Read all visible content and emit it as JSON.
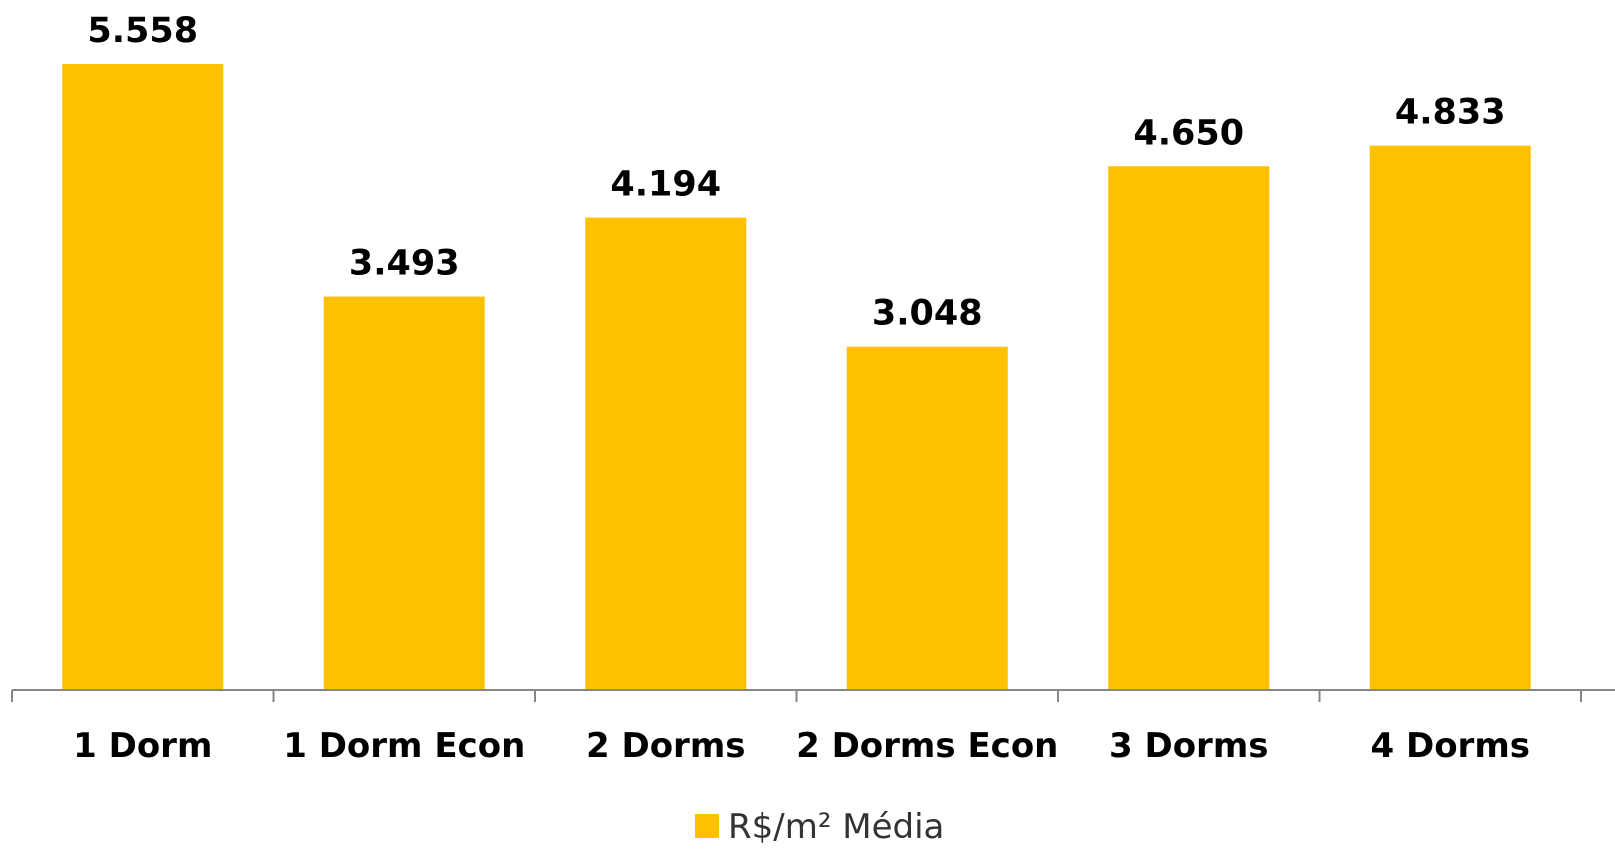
{
  "chart_data": {
    "type": "bar",
    "categories": [
      "1 Dorm",
      "1 Dorm Econ",
      "2 Dorms",
      "2 Dorms Econ",
      "3 Dorms",
      "4 Dorms"
    ],
    "series": [
      {
        "name": "R$/m² Média",
        "values": [
          5558,
          3493,
          4194,
          3048,
          4650,
          4833
        ],
        "labels": [
          "5.558",
          "3.493",
          "4.194",
          "3.048",
          "4.650",
          "4.833"
        ],
        "color": "#FFC000"
      }
    ],
    "title": "",
    "xlabel": "",
    "ylabel": "",
    "ylim": [
      0,
      5558
    ],
    "grid": false,
    "legend": "bottom"
  }
}
